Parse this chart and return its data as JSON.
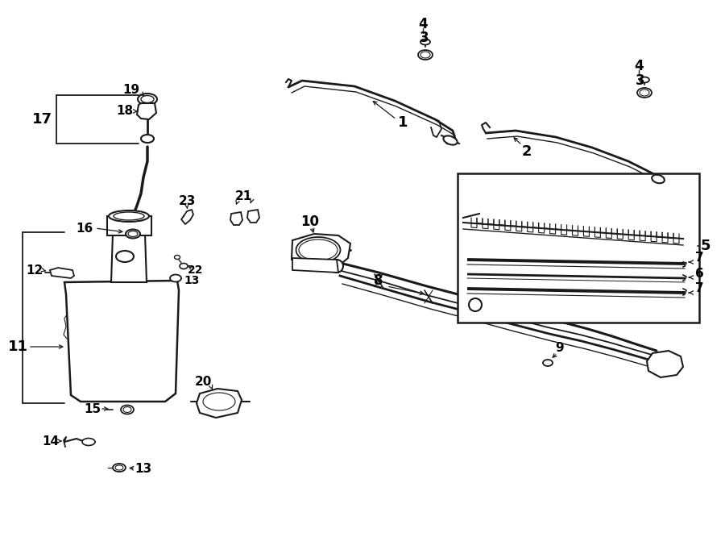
{
  "bg_color": "#ffffff",
  "lc": "#1a1a1a",
  "figsize": [
    9.0,
    6.61
  ],
  "dpi": 100,
  "xlim": [
    0,
    900
  ],
  "ylim": [
    0,
    661
  ]
}
